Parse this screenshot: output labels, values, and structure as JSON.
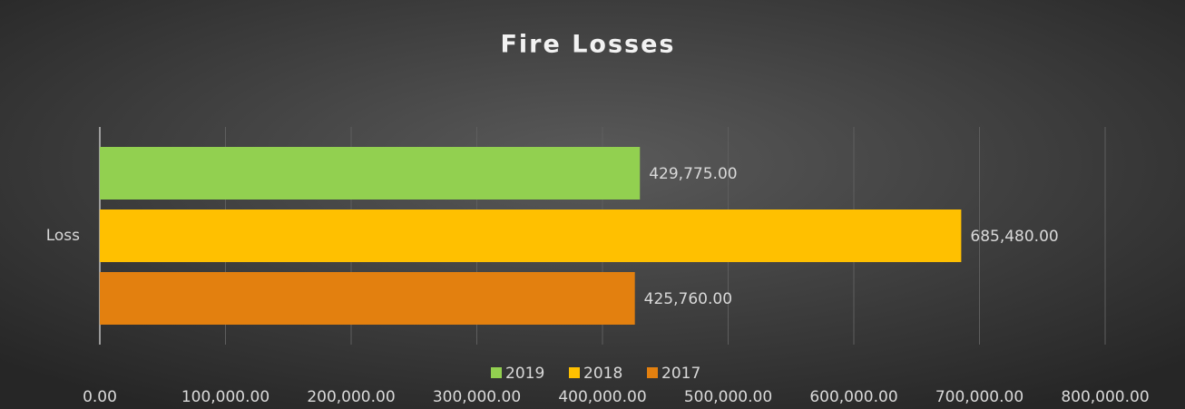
{
  "chart_data": {
    "type": "bar",
    "orientation": "horizontal",
    "title": "Fire Losses",
    "categories": [
      "Loss"
    ],
    "series": [
      {
        "name": "2019",
        "color": "#92d050",
        "values": [
          429775
        ],
        "value_labels": [
          "429,775.00"
        ]
      },
      {
        "name": "2018",
        "color": "#ffc000",
        "values": [
          685480
        ],
        "value_labels": [
          "685,480.00"
        ]
      },
      {
        "name": "2017",
        "color": "#e3800f",
        "values": [
          425760
        ],
        "value_labels": [
          "425,760.00"
        ]
      }
    ],
    "xlim": [
      0,
      800000
    ],
    "xticks": [
      {
        "value": 0,
        "label": "0.00"
      },
      {
        "value": 100000,
        "label": "100,000.00"
      },
      {
        "value": 200000,
        "label": "200,000.00"
      },
      {
        "value": 300000,
        "label": "300,000.00"
      },
      {
        "value": 400000,
        "label": "400,000.00"
      },
      {
        "value": 500000,
        "label": "500,000.00"
      },
      {
        "value": 600000,
        "label": "600,000.00"
      },
      {
        "value": 700000,
        "label": "700,000.00"
      },
      {
        "value": 800000,
        "label": "800,000.00"
      }
    ],
    "grid": true,
    "legend": "bottom"
  }
}
